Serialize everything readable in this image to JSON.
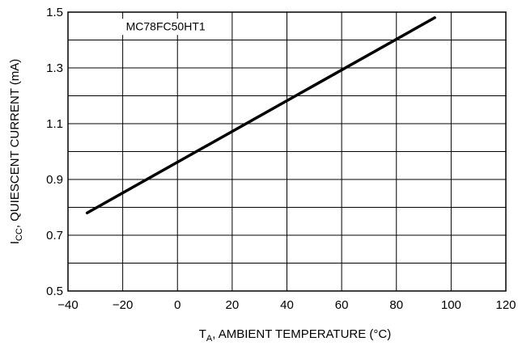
{
  "chart_data": {
    "type": "line",
    "xlabel": {
      "base": "T",
      "sub": "A",
      "rest": ", AMBIENT TEMPERATURE (°C)"
    },
    "ylabel": {
      "base": "I",
      "sub": "CC",
      "rest": ", QUIESCENT CURRENT (mA)"
    },
    "xlim": [
      -40,
      120
    ],
    "ylim": [
      0.5,
      1.5
    ],
    "xticks": [
      -40,
      -20,
      0,
      20,
      40,
      60,
      80,
      100,
      120
    ],
    "xtick_labels": [
      "−40",
      "−20",
      "0",
      "20",
      "40",
      "60",
      "80",
      "100",
      "120"
    ],
    "yticks": [
      0.5,
      0.7,
      0.9,
      1.1,
      1.3,
      1.5
    ],
    "ytick_labels": [
      "0.5",
      "0.7",
      "0.9",
      "1.1",
      "1.3",
      "1.5"
    ],
    "y_minor_gridlines": [
      0.6,
      0.8,
      1.0,
      1.2,
      1.4
    ],
    "grid": true,
    "series": [
      {
        "name": "MC78FC50HT1",
        "x": [
          -33,
          94
        ],
        "y": [
          0.78,
          1.48
        ]
      }
    ]
  }
}
